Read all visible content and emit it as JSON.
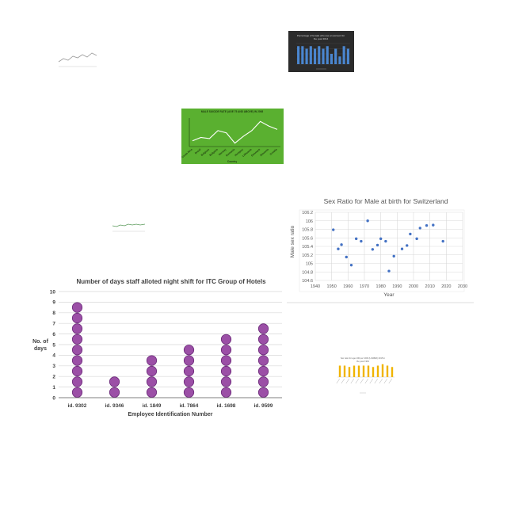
{
  "thumbnails": {
    "gray_line": {
      "title": "",
      "color": "#8a8a8a"
    },
    "dark_bar": {
      "title": "Percentage of female who use an account for the year 2014",
      "values": [
        7,
        7,
        6,
        7,
        6,
        7,
        6,
        7,
        4,
        6,
        3,
        7,
        6
      ],
      "bar_color": "#4a86d0"
    },
    "green_line": {
      "title": "MALE SUICIDE RATE (AGE 75 AND ABOVE) IN 2008",
      "values": [
        5.5,
        5.8,
        5.7,
        6.4,
        6.2,
        5.3,
        5.9,
        6.4,
        7.2,
        6.8,
        6.5
      ],
      "categories": [
        "Costa Rica",
        "Brazil",
        "Belgium",
        "Bulgaria",
        "Norway",
        "Romania",
        "Hungary",
        "Lithuania",
        "Denmark",
        "Slovenia",
        "Croatia"
      ],
      "xlabel": "Country"
    },
    "small_green_line": {
      "title": "Sex ratio for age group 0-14 Ages",
      "color": "#5a9a5a"
    },
    "yellow_bar": {
      "title": "Sex ratio for age 100 per 1000 (LOWER) 2015 in the year 1991",
      "values": [
        6,
        6,
        5,
        6,
        6,
        6,
        6,
        5,
        6,
        7,
        6,
        5
      ],
      "bar_color": "#f0b400"
    }
  },
  "scatter_chart": {
    "chart_data": {
      "type": "scatter",
      "title": "Sex Ratio for Male at birth for Switzerland",
      "xlabel": "Year",
      "ylabel": "Male sex ratio",
      "xlim": [
        1940,
        2030
      ],
      "ylim": [
        104.6,
        106.2
      ],
      "x_ticks": [
        "1940",
        "1950",
        "1960",
        "1970",
        "1980",
        "1990",
        "2000",
        "2010",
        "2020",
        "2030"
      ],
      "y_ticks": [
        "104.6",
        "104.8",
        "105",
        "105.2",
        "105.4",
        "105.6",
        "105.8",
        "106",
        "106.2"
      ],
      "points": [
        [
          1951,
          105.79
        ],
        [
          1954,
          105.34
        ],
        [
          1956,
          105.44
        ],
        [
          1959,
          105.15
        ],
        [
          1962,
          104.96
        ],
        [
          1965,
          105.58
        ],
        [
          1968,
          105.52
        ],
        [
          1972,
          106.0
        ],
        [
          1975,
          105.33
        ],
        [
          1978,
          105.43
        ],
        [
          1980,
          105.58
        ],
        [
          1983,
          105.52
        ],
        [
          1985,
          104.82
        ],
        [
          1988,
          105.17
        ],
        [
          1993,
          105.34
        ],
        [
          1996,
          105.42
        ],
        [
          1998,
          105.69
        ],
        [
          2002,
          105.58
        ],
        [
          2004,
          105.83
        ],
        [
          2008,
          105.89
        ],
        [
          2012,
          105.9
        ],
        [
          2018,
          105.52
        ]
      ],
      "marker_color": "#4472c4",
      "grid": true
    }
  },
  "dot_chart": {
    "chart_data": {
      "type": "bar",
      "title": "Number of days staff alloted night shift for ITC Group of Hotels",
      "xlabel": "Employee Identification Number",
      "ylabel_line1": "No. of",
      "ylabel_line2": "days",
      "categories": [
        "id. 9302",
        "id. 9346",
        "id. 1849",
        "id. 7864",
        "id. 1698",
        "id. 9599"
      ],
      "values": [
        9,
        2,
        4,
        5,
        6,
        7
      ],
      "ylim": [
        0,
        10
      ],
      "y_ticks": [
        "0",
        "1",
        "2",
        "3",
        "4",
        "5",
        "6",
        "7",
        "8",
        "9",
        "10"
      ],
      "marker_color": "#9b4fa6",
      "marker_stroke": "#6a2a78",
      "grid": true
    }
  }
}
